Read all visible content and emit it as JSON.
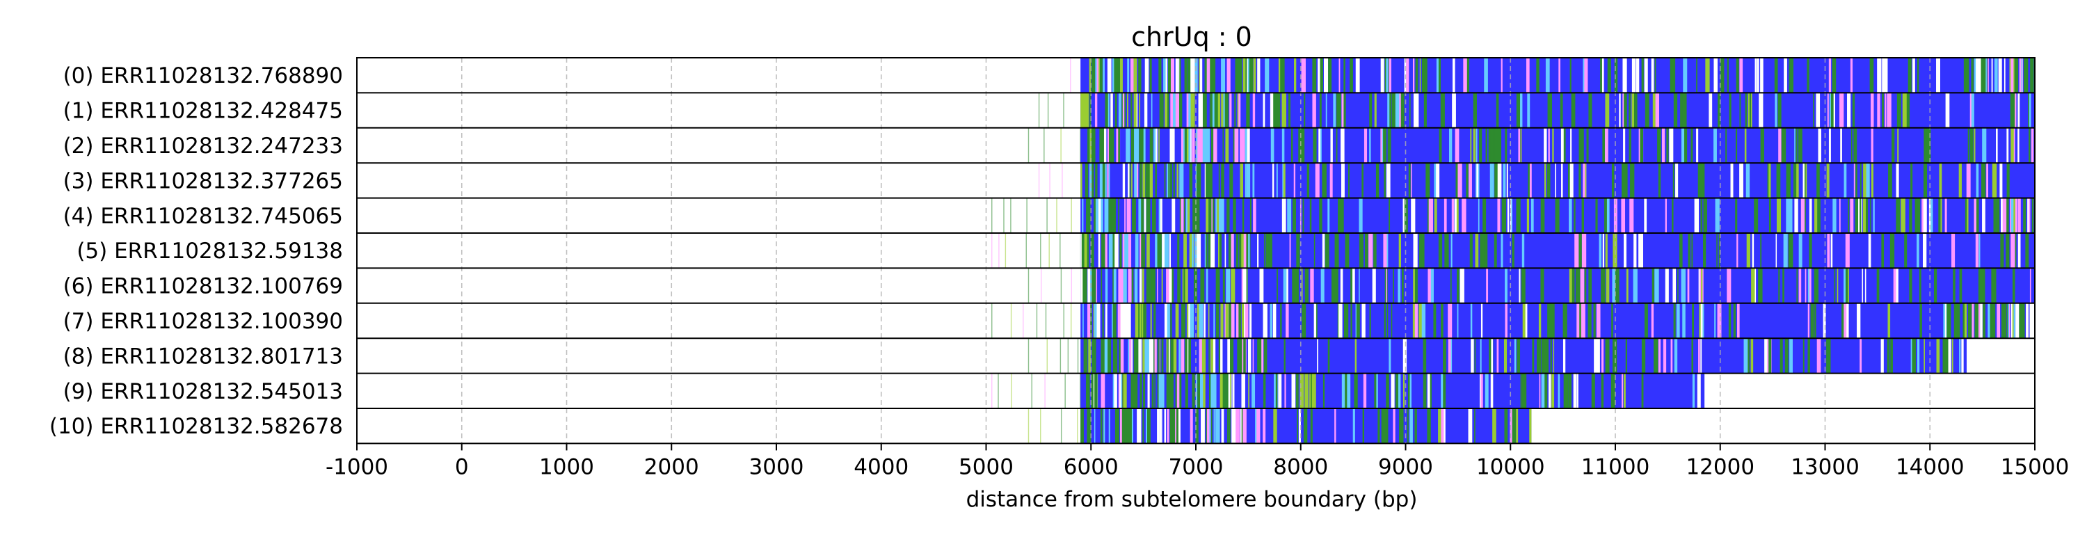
{
  "chart_data": {
    "type": "heatmap",
    "title": "chrUq : 0",
    "xlabel": "distance from subtelomere boundary (bp)",
    "ylabel": "",
    "xlim": [
      -1000,
      15000
    ],
    "xticks": [
      -1000,
      0,
      1000,
      2000,
      3000,
      4000,
      5000,
      6000,
      7000,
      8000,
      9000,
      10000,
      11000,
      12000,
      13000,
      14000,
      15000
    ],
    "xtick_labels": [
      "-1000",
      "0",
      "1000",
      "2000",
      "3000",
      "4000",
      "5000",
      "6000",
      "7000",
      "8000",
      "9000",
      "10000",
      "11000",
      "12000",
      "13000",
      "14000",
      "15000"
    ],
    "grid": "vertical dashed",
    "colors": {
      "blue": "#3333ff",
      "green": "#2e8b2e",
      "light_green": "#9acd32",
      "cyan": "#66ccff",
      "pink": "#ff99ff",
      "white": "#ffffff"
    },
    "reads": [
      {
        "label": "(0) ERR11028132.768890",
        "start": 5800,
        "end": 15000
      },
      {
        "label": "(1) ERR11028132.428475",
        "start": 5500,
        "end": 15000
      },
      {
        "label": "(2) ERR11028132.247233",
        "start": 5400,
        "end": 15000
      },
      {
        "label": "(3) ERR11028132.377265",
        "start": 5500,
        "end": 15000
      },
      {
        "label": "(4) ERR11028132.745065",
        "start": 5050,
        "end": 15000
      },
      {
        "label": "(5) ERR11028132.59138",
        "start": 5050,
        "end": 15000
      },
      {
        "label": "(6) ERR11028132.100769",
        "start": 5400,
        "end": 15000
      },
      {
        "label": "(7) ERR11028132.100390",
        "start": 5050,
        "end": 14950
      },
      {
        "label": "(8) ERR11028132.801713",
        "start": 5400,
        "end": 14350
      },
      {
        "label": "(9) ERR11028132.545013",
        "start": 5050,
        "end": 11850
      },
      {
        "label": "(10) ERR11028132.582678",
        "start": 5400,
        "end": 10200
      }
    ]
  }
}
